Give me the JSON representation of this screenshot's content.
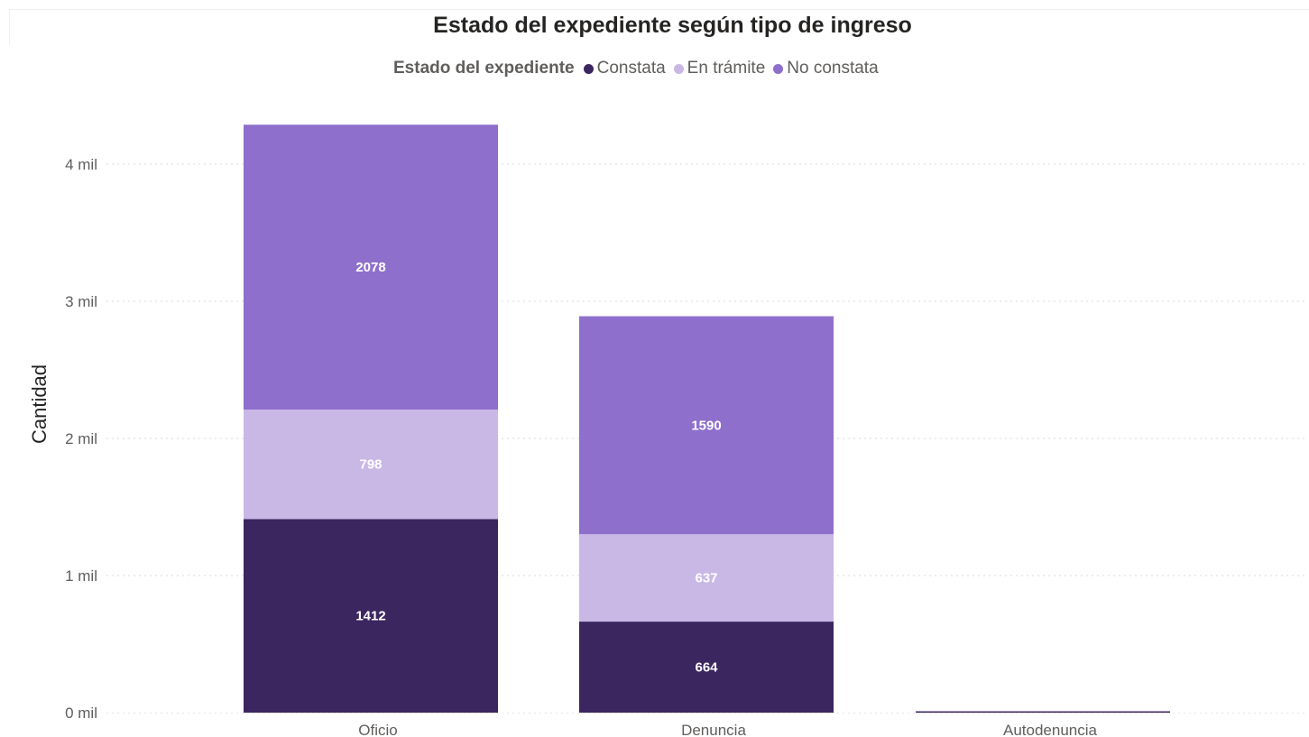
{
  "chart_data": {
    "type": "bar",
    "stacked": true,
    "title": "Estado del expediente según tipo de ingreso",
    "legend_title": "Estado del expediente",
    "legend_position": "top-center",
    "xlabel": "",
    "ylabel": "Cantidad",
    "ylim": [
      0,
      4300
    ],
    "y_ticks": [
      {
        "value": 0,
        "label": "0 mil"
      },
      {
        "value": 1000,
        "label": "1 mil"
      },
      {
        "value": 2000,
        "label": "2 mil"
      },
      {
        "value": 3000,
        "label": "3 mil"
      },
      {
        "value": 4000,
        "label": "4 mil"
      }
    ],
    "grid": true,
    "categories": [
      "Oficio",
      "Denuncia",
      "Autodenuncia"
    ],
    "series": [
      {
        "name": "Constata",
        "color": "#3b2660",
        "values": [
          1412,
          664,
          3
        ]
      },
      {
        "name": "En trámite",
        "color": "#c9b8e6",
        "values": [
          798,
          637,
          0
        ]
      },
      {
        "name": "No constata",
        "color": "#8f6fcc",
        "values": [
          2078,
          1590,
          0
        ]
      }
    ],
    "data_labels": true
  }
}
